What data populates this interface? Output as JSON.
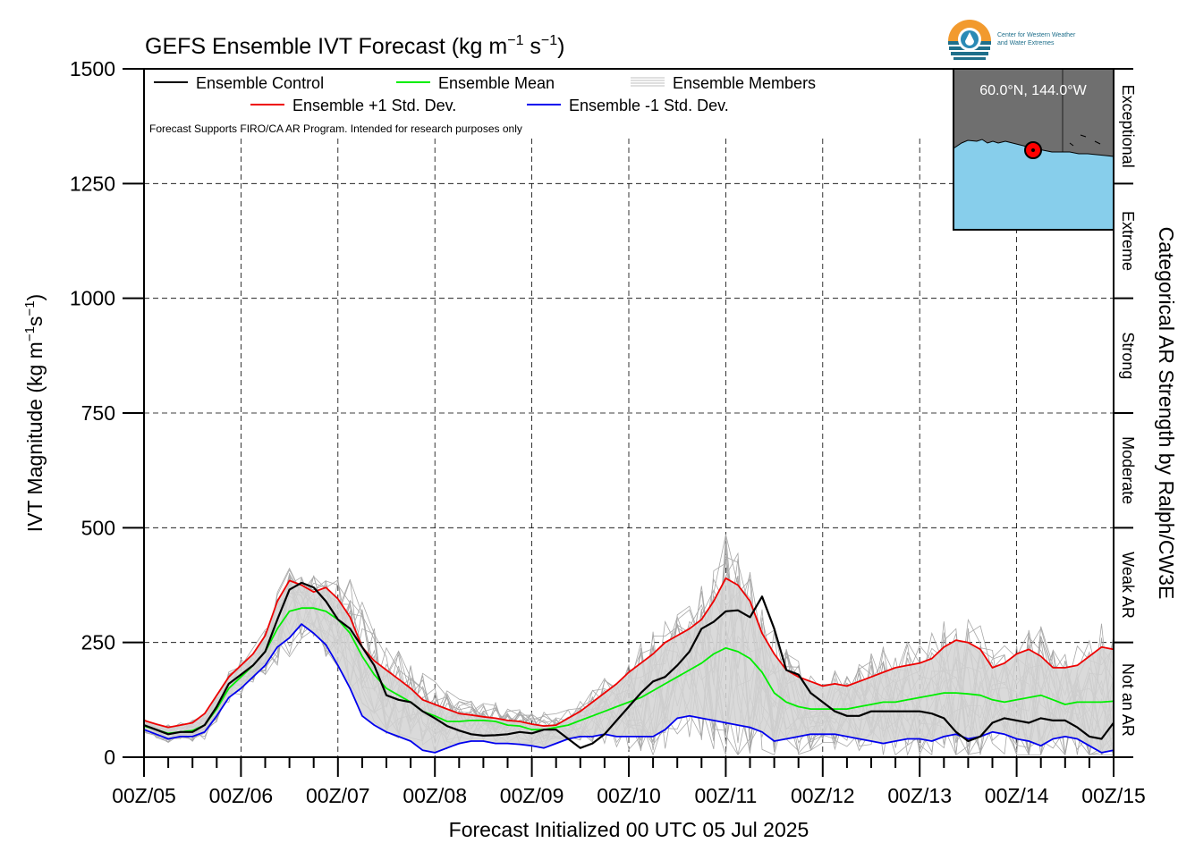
{
  "chart_data": {
    "type": "line",
    "title": "GEFS Ensemble IVT Forecast (kg m",
    "title_units": {
      "sup1": "−1",
      "mid": " s",
      "sup2": "−1",
      "end": ")"
    },
    "ylabel": "IVT Magnitude (kg m",
    "ylabel_units": {
      "sup1": "−1",
      "mid": "s",
      "sup2": "−1",
      "end": ")"
    },
    "xlabel": "Forecast Initialized 00 UTC 05 Jul 2025",
    "right_label": "Categorical AR Strength by Ralph/CW3E",
    "note": "Forecast Supports FIRO/CA AR Program. Intended for research purposes only",
    "ylim": [
      0,
      1500
    ],
    "yticks": [
      "0",
      "250",
      "500",
      "750",
      "1000",
      "1250",
      "1500"
    ],
    "ytick_values": [
      0,
      250,
      500,
      750,
      1000,
      1250,
      1500
    ],
    "xlim": [
      0,
      240
    ],
    "xticks": [
      "00Z/05",
      "00Z/06",
      "00Z/07",
      "00Z/08",
      "00Z/09",
      "00Z/10",
      "00Z/11",
      "00Z/12",
      "00Z/13",
      "00Z/14",
      "00Z/15"
    ],
    "grid": true,
    "legend_position": "top-left",
    "legend": {
      "control": "Ensemble Control",
      "mean": "Ensemble Mean",
      "members": "Ensemble Members",
      "plus": "Ensemble +1 Std. Dev.",
      "minus": "Ensemble -1 Std. Dev."
    },
    "categories": [
      {
        "label": "Not an AR",
        "from": 0,
        "to": 250
      },
      {
        "label": "Weak AR",
        "from": 250,
        "to": 500
      },
      {
        "label": "Moderate",
        "from": 500,
        "to": 750
      },
      {
        "label": "Strong",
        "from": 750,
        "to": 1000
      },
      {
        "label": "Extreme",
        "from": 1000,
        "to": 1250
      },
      {
        "label": "Exceptional",
        "from": 1250,
        "to": 1500
      }
    ],
    "x": [
      0,
      6,
      12,
      18,
      24,
      30,
      36,
      42,
      48,
      54,
      60,
      66,
      72,
      78,
      84,
      90,
      96,
      102,
      108,
      114,
      120,
      126,
      132,
      138,
      144,
      150,
      156,
      162,
      168,
      174,
      180,
      186,
      192,
      198,
      204,
      210,
      216,
      222,
      228,
      234,
      240
    ],
    "series": [
      {
        "name": "Ensemble Control",
        "color": "#000000",
        "x": [
          0,
          3,
          6,
          9,
          12,
          15,
          18,
          21,
          24,
          27,
          30,
          33,
          36,
          39,
          42,
          45,
          48,
          51,
          54,
          57,
          60,
          63,
          66,
          69,
          72,
          75,
          78,
          81,
          84,
          87,
          90,
          93,
          96,
          99,
          102,
          105,
          108,
          111,
          114,
          117,
          120,
          123,
          126,
          129,
          132,
          135,
          138,
          141,
          144,
          147,
          150,
          153,
          156,
          159,
          162,
          165,
          168,
          171,
          174,
          177,
          180,
          183,
          186,
          189,
          192,
          195,
          198,
          201,
          204,
          207,
          210,
          213,
          216,
          219,
          222,
          225,
          228,
          231,
          234,
          237,
          240
        ],
        "values": [
          70,
          60,
          50,
          55,
          55,
          70,
          110,
          160,
          180,
          200,
          230,
          300,
          365,
          380,
          370,
          340,
          300,
          280,
          240,
          200,
          135,
          125,
          120,
          100,
          85,
          68,
          58,
          50,
          47,
          48,
          50,
          55,
          52,
          60,
          60,
          40,
          20,
          30,
          50,
          80,
          110,
          140,
          165,
          175,
          200,
          230,
          280,
          295,
          318,
          320,
          305,
          350,
          280,
          190,
          180,
          140,
          120,
          100,
          90,
          90,
          100,
          100,
          100,
          100,
          100,
          95,
          85,
          55,
          35,
          45,
          75,
          85,
          80,
          75,
          85,
          80,
          80,
          65,
          45,
          40,
          75
        ]
      },
      {
        "name": "Ensemble Mean",
        "color": "#00ee00",
        "x": [
          0,
          3,
          6,
          9,
          12,
          15,
          18,
          21,
          24,
          27,
          30,
          33,
          36,
          39,
          42,
          45,
          48,
          51,
          54,
          57,
          60,
          63,
          66,
          69,
          72,
          75,
          78,
          81,
          84,
          87,
          90,
          93,
          96,
          99,
          102,
          105,
          108,
          111,
          114,
          117,
          120,
          123,
          126,
          129,
          132,
          135,
          138,
          141,
          144,
          147,
          150,
          153,
          156,
          159,
          162,
          165,
          168,
          171,
          174,
          177,
          180,
          183,
          186,
          189,
          192,
          195,
          198,
          201,
          204,
          207,
          210,
          213,
          216,
          219,
          222,
          225,
          228,
          231,
          234,
          237,
          240
        ],
        "values": [
          68,
          60,
          52,
          55,
          58,
          70,
          105,
          150,
          175,
          200,
          230,
          280,
          318,
          325,
          325,
          318,
          300,
          270,
          220,
          180,
          150,
          135,
          120,
          100,
          90,
          78,
          78,
          80,
          80,
          78,
          70,
          68,
          60,
          60,
          65,
          70,
          80,
          90,
          100,
          110,
          120,
          130,
          145,
          160,
          175,
          190,
          205,
          225,
          238,
          230,
          215,
          185,
          140,
          120,
          110,
          105,
          105,
          105,
          105,
          110,
          115,
          120,
          120,
          125,
          130,
          135,
          140,
          140,
          138,
          135,
          125,
          120,
          125,
          130,
          135,
          125,
          115,
          120,
          120,
          120,
          122
        ]
      },
      {
        "name": "Ensemble +1 Std. Dev.",
        "color": "#ee0000",
        "x": [
          0,
          3,
          6,
          9,
          12,
          15,
          18,
          21,
          24,
          27,
          30,
          33,
          36,
          39,
          42,
          45,
          48,
          51,
          54,
          57,
          60,
          63,
          66,
          69,
          72,
          75,
          78,
          81,
          84,
          87,
          90,
          93,
          96,
          99,
          102,
          105,
          108,
          111,
          114,
          117,
          120,
          123,
          126,
          129,
          132,
          135,
          138,
          141,
          144,
          147,
          150,
          153,
          156,
          159,
          162,
          165,
          168,
          171,
          174,
          177,
          180,
          183,
          186,
          189,
          192,
          195,
          198,
          201,
          204,
          207,
          210,
          213,
          216,
          219,
          222,
          225,
          228,
          231,
          234,
          237,
          240
        ],
        "values": [
          80,
          72,
          65,
          70,
          75,
          95,
          135,
          175,
          200,
          225,
          265,
          340,
          385,
          375,
          360,
          370,
          345,
          305,
          240,
          210,
          190,
          170,
          150,
          125,
          115,
          105,
          95,
          92,
          88,
          85,
          80,
          78,
          72,
          68,
          70,
          85,
          100,
          120,
          140,
          160,
          185,
          205,
          225,
          250,
          265,
          280,
          300,
          340,
          390,
          375,
          340,
          270,
          225,
          190,
          175,
          165,
          155,
          160,
          155,
          165,
          175,
          185,
          195,
          200,
          205,
          215,
          240,
          255,
          250,
          235,
          195,
          205,
          225,
          235,
          220,
          195,
          195,
          200,
          220,
          240,
          235
        ]
      },
      {
        "name": "Ensemble -1 Std. Dev.",
        "color": "#0000ee",
        "x": [
          0,
          3,
          6,
          9,
          12,
          15,
          18,
          21,
          24,
          27,
          30,
          33,
          36,
          39,
          42,
          45,
          48,
          51,
          54,
          57,
          60,
          63,
          66,
          69,
          72,
          75,
          78,
          81,
          84,
          87,
          90,
          93,
          96,
          99,
          102,
          105,
          108,
          111,
          114,
          117,
          120,
          123,
          126,
          129,
          132,
          135,
          138,
          141,
          144,
          147,
          150,
          153,
          156,
          159,
          162,
          165,
          168,
          171,
          174,
          177,
          180,
          183,
          186,
          189,
          192,
          195,
          198,
          201,
          204,
          207,
          210,
          213,
          216,
          219,
          222,
          225,
          228,
          231,
          234,
          237,
          240
        ],
        "values": [
          60,
          50,
          40,
          45,
          45,
          55,
          90,
          130,
          150,
          175,
          200,
          240,
          260,
          290,
          270,
          245,
          200,
          150,
          90,
          70,
          55,
          45,
          35,
          15,
          10,
          20,
          30,
          35,
          35,
          30,
          30,
          28,
          25,
          20,
          30,
          40,
          45,
          45,
          50,
          45,
          45,
          45,
          45,
          60,
          85,
          90,
          85,
          80,
          75,
          70,
          65,
          55,
          35,
          40,
          45,
          50,
          50,
          50,
          45,
          40,
          35,
          30,
          35,
          40,
          40,
          35,
          45,
          50,
          40,
          45,
          55,
          50,
          40,
          35,
          25,
          40,
          45,
          40,
          25,
          10,
          15
        ]
      }
    ]
  },
  "inset": {
    "location": "60.0°N, 144.0°W",
    "land_color": "#6f6f6f",
    "ocean_color": "#87ceeb"
  },
  "logo": {
    "line1": "Center for Western Weather",
    "line2": "and Water Extremes"
  }
}
